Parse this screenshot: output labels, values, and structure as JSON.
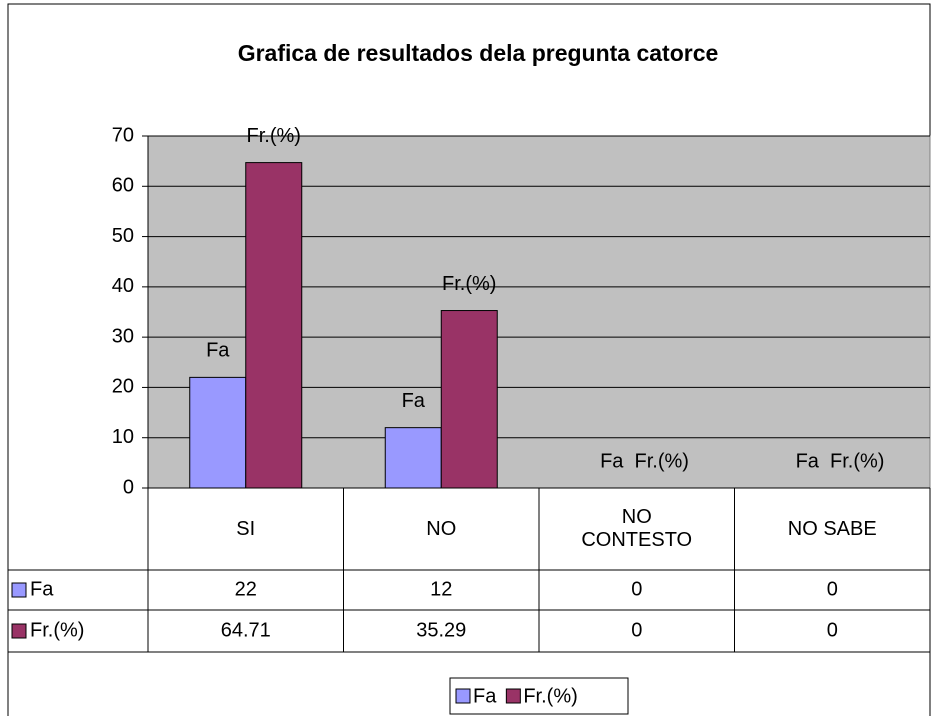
{
  "chart_data": {
    "type": "bar",
    "title": "Grafica de resultados dela pregunta catorce",
    "categories": [
      "SI",
      "NO",
      "NO CONTESTO",
      "NO SABE"
    ],
    "series": [
      {
        "name": "Fa",
        "color": "#9999ff",
        "values": [
          22,
          12,
          0,
          0
        ]
      },
      {
        "name": "Fr.(%)",
        "color": "#993366",
        "values": [
          64.71,
          35.29,
          0,
          0
        ]
      }
    ],
    "ylim": [
      0,
      70
    ],
    "yticks": [
      0,
      10,
      20,
      30,
      40,
      50,
      60,
      70
    ],
    "grid": true,
    "plot_background": "#c0c0c0"
  }
}
